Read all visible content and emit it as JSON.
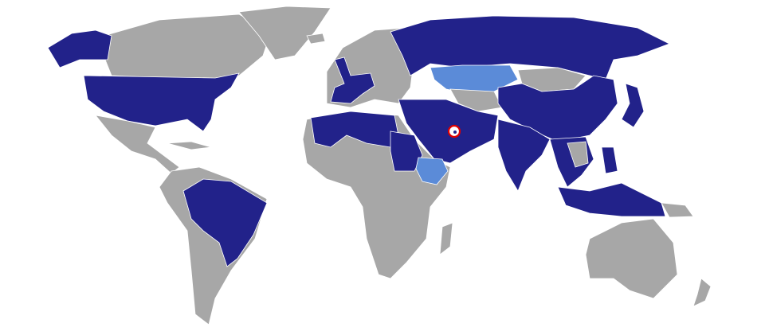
{
  "map": {
    "colors": {
      "primary_countries": "#22228a",
      "secondary_countries": "#5b8bd8",
      "other_countries": "#a7a7a7",
      "highlight_marker": "#e00000",
      "background": "#ffffff"
    },
    "highlighted_country_marker": "red-circle"
  }
}
